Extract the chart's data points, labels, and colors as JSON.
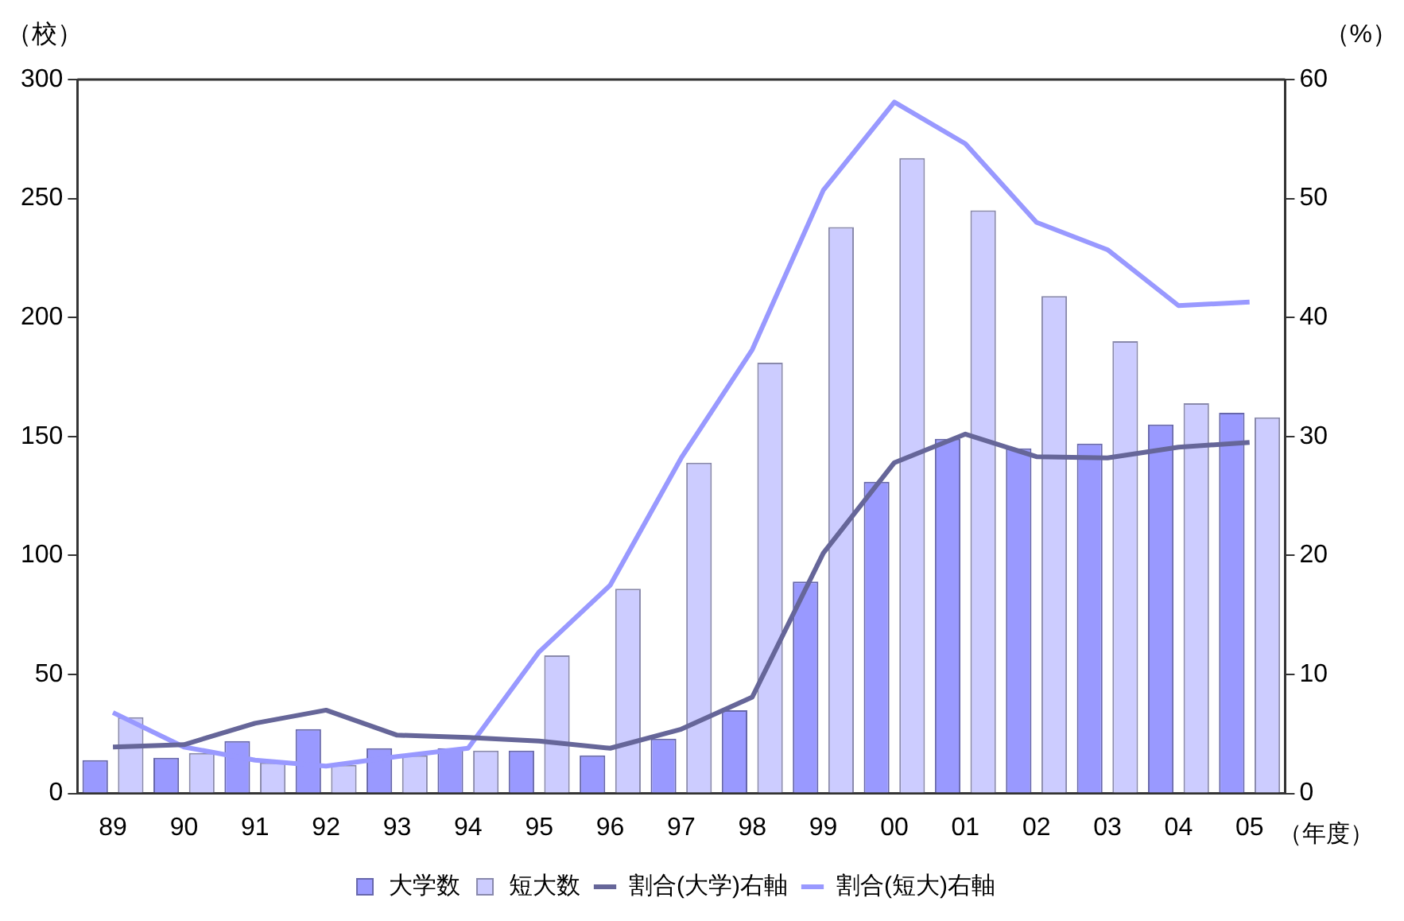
{
  "chart_data": {
    "type": "bar",
    "ylabel": "（校）",
    "y2label": "（%）",
    "xlabel": "（年度）",
    "categories": [
      "89",
      "90",
      "91",
      "92",
      "93",
      "94",
      "95",
      "96",
      "97",
      "98",
      "99",
      "00",
      "01",
      "02",
      "03",
      "04",
      "05"
    ],
    "series": [
      {
        "name": "大学数",
        "color": "#9999ff",
        "values": [
          14,
          15,
          22,
          27,
          19,
          19,
          18,
          16,
          23,
          35,
          89,
          131,
          149,
          145,
          147,
          155,
          160
        ]
      },
      {
        "name": "短大数",
        "color": "#ccccff",
        "values": [
          32,
          17,
          13,
          12,
          16,
          18,
          58,
          86,
          139,
          181,
          238,
          267,
          245,
          209,
          190,
          164,
          158
        ]
      },
      {
        "name": "割合(大学)右軸",
        "type": "line",
        "axis": "y2",
        "color": "#666699",
        "values": [
          3.9,
          4.1,
          5.9,
          7.0,
          4.9,
          4.7,
          4.4,
          3.8,
          5.4,
          8.1,
          20.2,
          27.8,
          30.2,
          28.3,
          28.2,
          29.1,
          29.5
        ]
      },
      {
        "name": "割合(短大)右軸",
        "type": "line",
        "axis": "y2",
        "color": "#9999ff",
        "values": [
          6.8,
          3.9,
          2.8,
          2.3,
          3.1,
          3.8,
          11.9,
          17.5,
          28.2,
          37.3,
          50.7,
          58.1,
          54.6,
          48.0,
          45.7,
          41.0,
          41.3
        ]
      }
    ],
    "ylim": [
      0,
      300
    ],
    "yticks": [
      0,
      50,
      100,
      150,
      200,
      250,
      300
    ],
    "y2lim": [
      0,
      60
    ],
    "y2ticks": [
      0,
      10,
      20,
      30,
      40,
      50,
      60
    ],
    "grid": false,
    "legend": "bottom",
    "marker": "none"
  }
}
